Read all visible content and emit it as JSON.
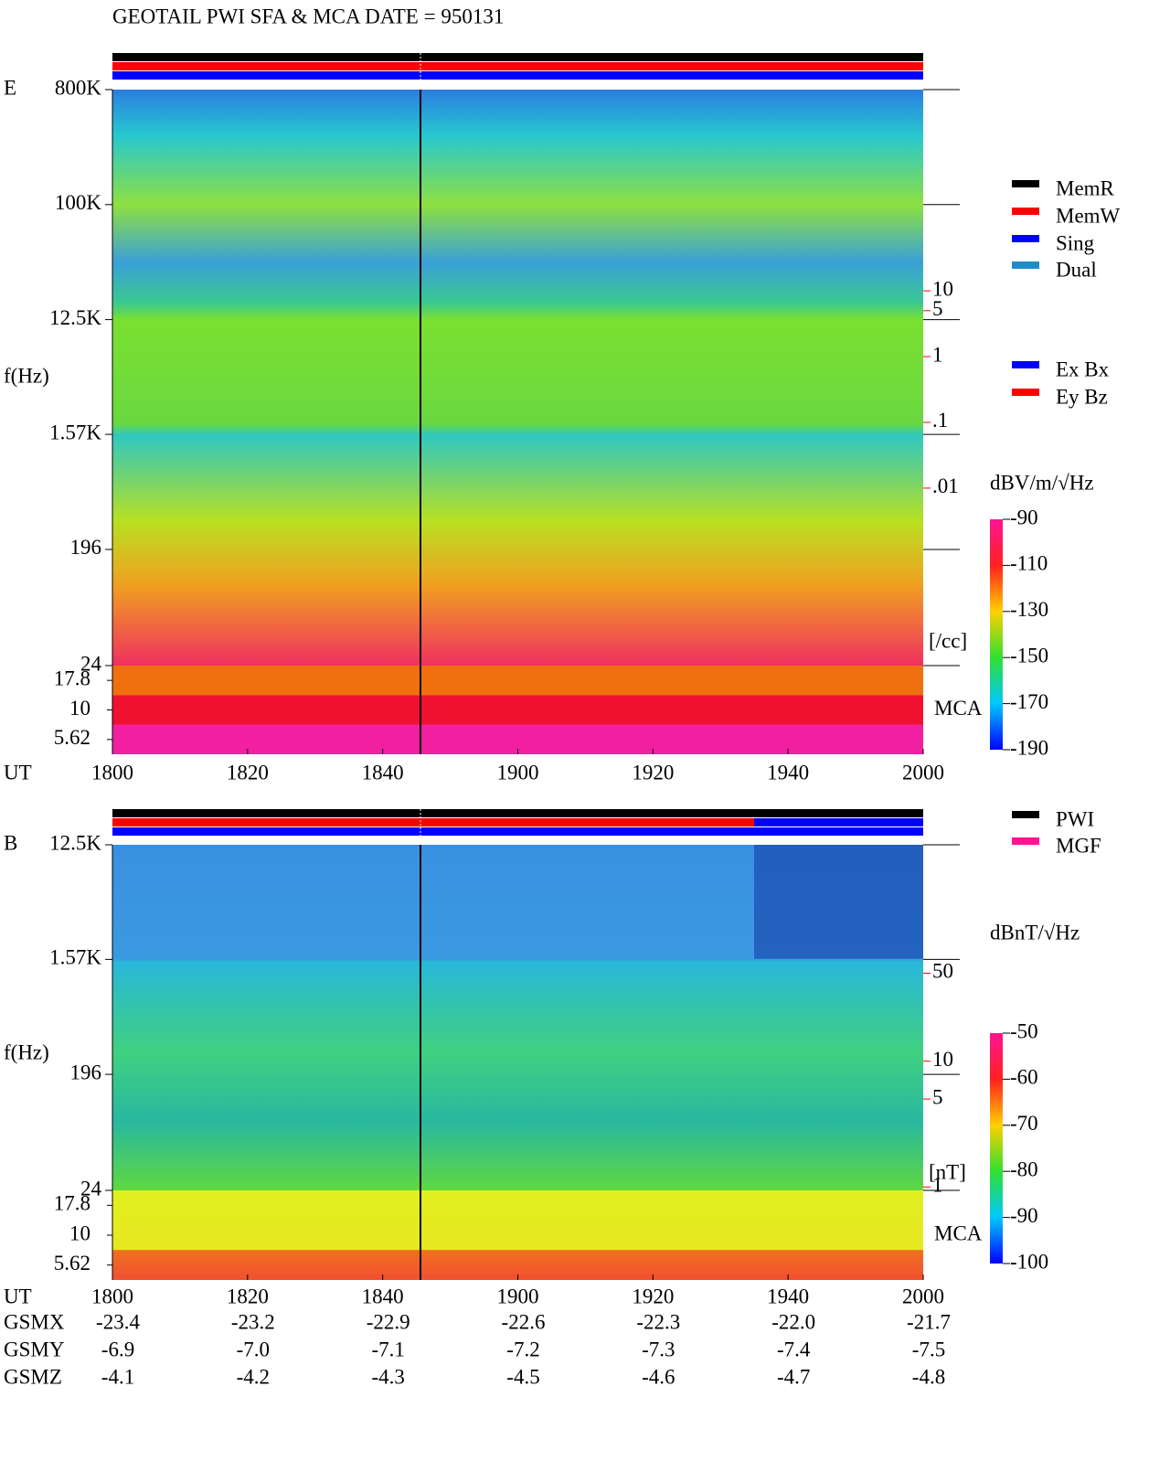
{
  "chart_data": [
    {
      "type": "spectrogram",
      "title": "GEOTAIL  PWI SFA & MCA   DATE = 950131",
      "panel_label": "E",
      "y_label": "f(Hz)",
      "x_label": "UT",
      "log_y": true,
      "ylim": [
        24,
        800000
      ],
      "yticks": [
        {
          "value": 800000,
          "label": "800K"
        },
        {
          "value": 100000,
          "label": "100K"
        },
        {
          "value": 12500,
          "label": "12.5K"
        },
        {
          "value": 1570,
          "label": "1.57K"
        },
        196,
        24
      ],
      "mca_label": "MCA",
      "mca_channels": [
        17.8,
        10,
        5.62
      ],
      "xlim": [
        1080,
        1200
      ],
      "xticks": [
        {
          "value": 1080,
          "label": "1800"
        },
        {
          "value": 1100,
          "label": "1820"
        },
        {
          "value": 1120,
          "label": "1840"
        },
        {
          "value": 1140,
          "label": "1900"
        },
        {
          "value": 1160,
          "label": "1920"
        },
        {
          "value": 1180,
          "label": "1940"
        },
        {
          "value": 1200,
          "label": "2000"
        }
      ],
      "y2_label": "[/cc]",
      "y2_color": "#ff0000",
      "y2lim": [
        2e-05,
        11500
      ],
      "y2ticks": [
        10,
        5,
        1,
        {
          "value": 0.1,
          "label": ".1"
        },
        {
          "value": 0.01,
          "label": ".01"
        }
      ],
      "colorbar": {
        "label": "dBV/m/√Hz",
        "lim": [
          -190,
          -90
        ],
        "ticks": [
          -90,
          -110,
          -130,
          -150,
          -170,
          -190
        ]
      },
      "legend": [
        {
          "name": "MemR",
          "color": "#000000"
        },
        {
          "name": "MemW",
          "color": "#ff0000"
        },
        {
          "name": "Sing",
          "color": "#0000ff"
        },
        {
          "name": "Dual",
          "color": "#1e8cc8"
        }
      ],
      "legend2": [
        {
          "name": "Ex Bx",
          "color": "#0000ff"
        },
        {
          "name": "Ey Bz",
          "color": "#ff0000"
        }
      ]
    },
    {
      "type": "spectrogram",
      "panel_label": "B",
      "y_label": "f(Hz)",
      "x_label": "UT",
      "log_y": true,
      "ylim": [
        24,
        12500
      ],
      "yticks": [
        {
          "value": 12500,
          "label": "12.5K"
        },
        {
          "value": 1570,
          "label": "1.57K"
        },
        196,
        24
      ],
      "mca_label": "MCA",
      "mca_channels": [
        17.8,
        10,
        5.62
      ],
      "xlim": [
        1080,
        1200
      ],
      "xticks": [
        {
          "value": 1080,
          "label": "1800"
        },
        {
          "value": 1100,
          "label": "1820"
        },
        {
          "value": 1120,
          "label": "1840"
        },
        {
          "value": 1140,
          "label": "1900"
        },
        {
          "value": 1160,
          "label": "1920"
        },
        {
          "value": 1180,
          "label": "1940"
        },
        {
          "value": 1200,
          "label": "2000"
        }
      ],
      "y2_label": "[nT]",
      "y2_color": "#ff0000",
      "y2lim": [
        0.94,
        524
      ],
      "y2ticks": [
        50,
        10,
        5,
        1
      ],
      "colorbar": {
        "label": "dBnT/√Hz",
        "lim": [
          -100,
          -50
        ],
        "ticks": [
          -50,
          -60,
          -70,
          -80,
          -90,
          -100
        ]
      },
      "legend": [
        {
          "name": "PWI",
          "color": "#000000"
        },
        {
          "name": "MGF",
          "color": "#ff1493"
        }
      ],
      "orbit": [
        {
          "name": "GSMX",
          "values": [
            "-23.4",
            "-23.2",
            "-22.9",
            "-22.6",
            "-22.3",
            "-22.0",
            "-21.7"
          ]
        },
        {
          "name": "GSMY",
          "values": [
            "-6.9",
            "-7.0",
            "-7.1",
            "-7.2",
            "-7.3",
            "-7.4",
            "-7.5"
          ]
        },
        {
          "name": "GSMZ",
          "values": [
            "-4.1",
            "-4.2",
            "-4.3",
            "-4.5",
            "-4.6",
            "-4.7",
            "-4.8"
          ]
        }
      ]
    }
  ]
}
